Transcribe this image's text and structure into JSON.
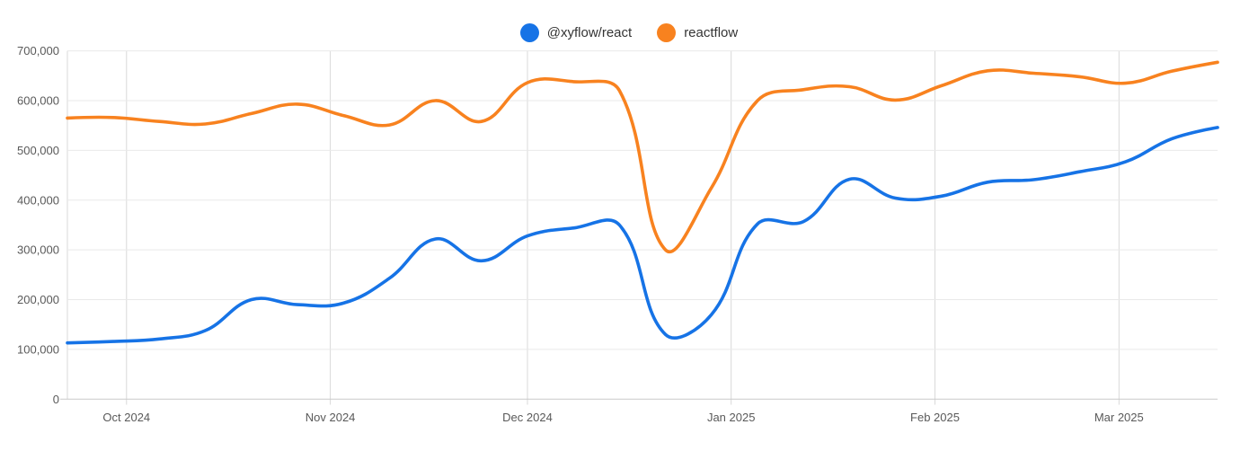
{
  "chart_data": {
    "type": "line",
    "title": "",
    "legend_position": "top-center",
    "grid": true,
    "smoothing": "bezier",
    "x_axis": {
      "unit": "day_offset_weekly_points",
      "domain": [
        0,
        175
      ],
      "ticks": [
        {
          "label": "Oct 2024",
          "day": 9
        },
        {
          "label": "Nov 2024",
          "day": 40
        },
        {
          "label": "Dec 2024",
          "day": 70
        },
        {
          "label": "Jan 2025",
          "day": 101
        },
        {
          "label": "Feb 2025",
          "day": 132
        },
        {
          "label": "Mar 2025",
          "day": 160
        }
      ]
    },
    "y_axis": {
      "domain": [
        0,
        700000
      ],
      "tick_step": 100000,
      "tick_labels": [
        "0",
        "100,000",
        "200,000",
        "300,000",
        "400,000",
        "500,000",
        "600,000",
        "700,000"
      ]
    },
    "x_days": [
      0,
      7,
      14,
      21,
      28,
      35,
      42,
      49,
      56,
      63,
      70,
      77,
      84,
      91,
      98,
      105,
      112,
      119,
      126,
      133,
      140,
      147,
      154,
      161,
      168,
      175
    ],
    "series": [
      {
        "name": "@xyflow/react",
        "color": "#1673E6",
        "values": [
          113000,
          116000,
          121000,
          138000,
          200000,
          190000,
          193000,
          243000,
          322000,
          278000,
          328000,
          344000,
          350000,
          130000,
          170000,
          352000,
          357000,
          442000,
          404000,
          408000,
          436000,
          441000,
          457000,
          477000,
          523000,
          546000
        ]
      },
      {
        "name": "reactflow",
        "color": "#F8821F",
        "values": [
          565000,
          566000,
          558000,
          553000,
          574000,
          593000,
          570000,
          551000,
          600000,
          558000,
          636000,
          638000,
          620000,
          300000,
          425000,
          600000,
          622000,
          628000,
          601000,
          630000,
          660000,
          655000,
          648000,
          635000,
          659000,
          677000
        ]
      }
    ]
  },
  "legend": {
    "items": [
      {
        "label": "@xyflow/react"
      },
      {
        "label": "reactflow"
      }
    ]
  }
}
